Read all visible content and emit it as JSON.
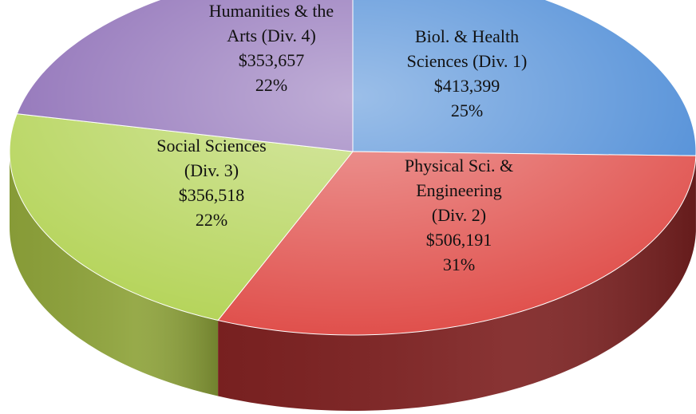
{
  "chart_data": {
    "type": "pie3d",
    "categories": [
      [
        "Biol. & Health",
        "Sciences (Div. 1)"
      ],
      [
        "Physical Sci. &",
        "Engineering",
        "(Div. 2)"
      ],
      [
        "Social Sciences",
        "(Div. 3)"
      ],
      [
        "Humanities & the",
        "Arts (Div. 4)"
      ]
    ],
    "values": [
      413399,
      506191,
      356518,
      353657
    ],
    "value_labels": [
      "$413,399",
      "$506,191",
      "$356,518",
      "$353,657"
    ],
    "percents": [
      25,
      31,
      22,
      22
    ],
    "percent_labels": [
      "25%",
      "31%",
      "22%",
      "22%"
    ],
    "colors": [
      "#4a8ad6",
      "#e0504c",
      "#b5d45a",
      "#8b6bb5"
    ],
    "side_colors": [
      "#2e5f9a",
      "#7e2222",
      "#8ea33a",
      "#5e4585"
    ]
  }
}
